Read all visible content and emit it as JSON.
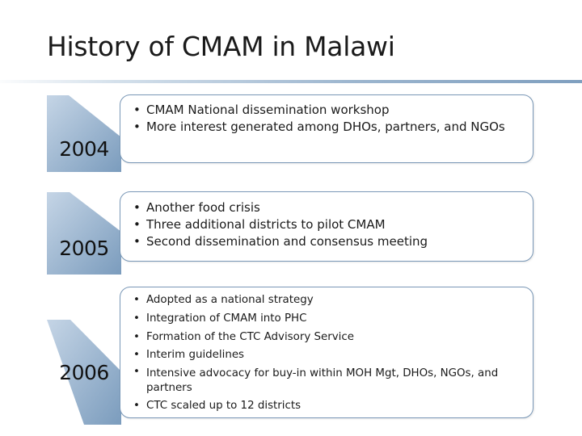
{
  "title": "History of CMAM in Malawi",
  "timeline": [
    {
      "year": "2004",
      "bullets": [
        "CMAM National dissemination workshop",
        "More interest generated among DHOs, partners, and NGOs"
      ]
    },
    {
      "year": "2005",
      "bullets": [
        "Another food crisis",
        "Three additional districts to pilot CMAM",
        "Second dissemination and consensus meeting"
      ]
    },
    {
      "year": "2006",
      "bullets": [
        "Adopted as a national strategy",
        "Integration of CMAM into PHC",
        "Formation of the CTC Advisory Service",
        "Interim guidelines",
        "Intensive advocacy for buy-in within MOH Mgt, DHOs, NGOs, and partners",
        "CTC scaled up to 12 districts"
      ]
    }
  ],
  "colors": {
    "arrow_light": "#c5d5e6",
    "arrow_dark": "#7b9cbd",
    "card_border": "#7a98b7"
  }
}
